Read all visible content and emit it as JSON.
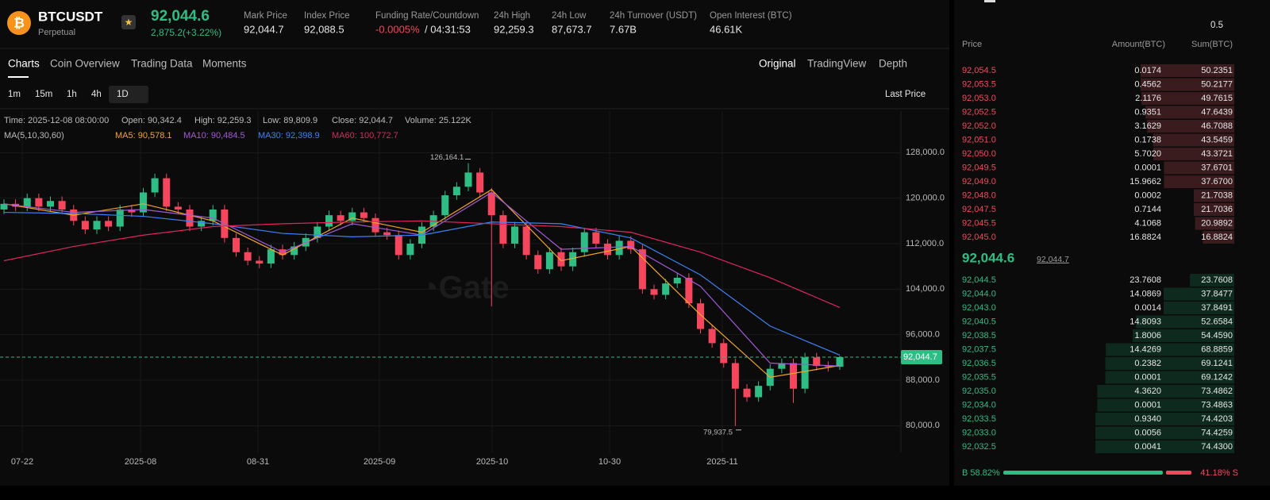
{
  "header": {
    "symbol": "BTCUSDT",
    "contract": "Perpetual",
    "price": "92,044.6",
    "change": "2,875.2(+3.22%)",
    "stats": [
      {
        "label": "Mark Price",
        "value": "92,044.7"
      },
      {
        "label": "Index Price",
        "value": "92,088.5"
      },
      {
        "label": "Funding Rate/Countdown",
        "value": "-0.0005%",
        "extra": "/ 04:31:53"
      },
      {
        "label": "24h High",
        "value": "92,259.3"
      },
      {
        "label": "24h Low",
        "value": "87,673.7"
      },
      {
        "label": "24h Turnover (USDT)",
        "value": "7.67B"
      },
      {
        "label": "Open Interest (BTC)",
        "value": "46.61K"
      }
    ]
  },
  "tabs": [
    "Charts",
    "Coin Overview",
    "Trading Data",
    "Moments"
  ],
  "views": [
    "Original",
    "TradingView",
    "Depth"
  ],
  "intervals": [
    "1m",
    "15m",
    "1h",
    "4h",
    "1D"
  ],
  "price_source": "Last Price",
  "chart_data": {
    "type": "candlestick",
    "info": [
      "Time: 2025-12-08 08:00:00",
      "Open: 90,342.4",
      "High: 92,259.3",
      "Low: 89,809.9",
      "Close: 92,044.7",
      "Volume: 25.122K"
    ],
    "ma_label": "MA(5,10,30,60)",
    "candles": [
      [
        118000,
        119800,
        117200,
        119000
      ],
      [
        119000,
        119800,
        117700,
        118500
      ],
      [
        118500,
        120800,
        117700,
        120000
      ],
      [
        120000,
        120800,
        117700,
        118500
      ],
      [
        118500,
        120300,
        117700,
        119500
      ],
      [
        119500,
        120300,
        117200,
        118000
      ],
      [
        118000,
        118800,
        115200,
        116000
      ],
      [
        116000,
        116800,
        113700,
        114500
      ],
      [
        114500,
        116800,
        113700,
        116000
      ],
      [
        116000,
        116800,
        114200,
        115000
      ],
      [
        115000,
        118800,
        114200,
        118000
      ],
      [
        118000,
        118800,
        116700,
        117500
      ],
      [
        117500,
        121800,
        116700,
        121000
      ],
      [
        121000,
        124300,
        120200,
        123500
      ],
      [
        123500,
        124300,
        117700,
        118500
      ],
      [
        118500,
        119300,
        117200,
        118000
      ],
      [
        118000,
        118800,
        114200,
        115000
      ],
      [
        115000,
        116800,
        114200,
        116000
      ],
      [
        116000,
        118800,
        115200,
        118000
      ],
      [
        118000,
        118800,
        112200,
        113000
      ],
      [
        113000,
        113800,
        109700,
        110500
      ],
      [
        110500,
        111300,
        108200,
        109000
      ],
      [
        109000,
        109800,
        107700,
        108500
      ],
      [
        108500,
        111800,
        107700,
        111000
      ],
      [
        111000,
        111800,
        109200,
        110000
      ],
      [
        110000,
        112300,
        109200,
        111500
      ],
      [
        111500,
        113800,
        110700,
        113000
      ],
      [
        113000,
        115800,
        112200,
        115000
      ],
      [
        115000,
        117800,
        114200,
        117000
      ],
      [
        117000,
        117800,
        115200,
        116000
      ],
      [
        116000,
        118300,
        115200,
        117500
      ],
      [
        117500,
        118300,
        115700,
        116500
      ],
      [
        116500,
        117300,
        113200,
        114000
      ],
      [
        114000,
        114800,
        112700,
        113500
      ],
      [
        113500,
        114300,
        109200,
        110000
      ],
      [
        110000,
        112800,
        109200,
        112000
      ],
      [
        112000,
        115800,
        111200,
        115000
      ],
      [
        115000,
        117800,
        114200,
        117000
      ],
      [
        117000,
        121300,
        116200,
        120500
      ],
      [
        120500,
        122800,
        119700,
        122000
      ],
      [
        122000,
        126164.1,
        121200,
        124500
      ],
      [
        124500,
        125300,
        120200,
        121000
      ],
      [
        121000,
        121800,
        101000,
        117000
      ],
      [
        117000,
        117800,
        111200,
        112000
      ],
      [
        112000,
        115800,
        111200,
        115000
      ],
      [
        115000,
        115800,
        109200,
        110000
      ],
      [
        110000,
        110800,
        106700,
        107500
      ],
      [
        107500,
        111300,
        106700,
        110500
      ],
      [
        110500,
        111300,
        107200,
        108000
      ],
      [
        108000,
        111300,
        107200,
        110500
      ],
      [
        110500,
        114800,
        109700,
        114000
      ],
      [
        114000,
        114800,
        111200,
        112000
      ],
      [
        112000,
        112800,
        109200,
        110000
      ],
      [
        110000,
        113300,
        109200,
        112500
      ],
      [
        112500,
        113300,
        110200,
        111000
      ],
      [
        111000,
        111800,
        103200,
        104000
      ],
      [
        104000,
        104800,
        102200,
        103000
      ],
      [
        103000,
        105800,
        102200,
        105000
      ],
      [
        105000,
        106800,
        104200,
        106000
      ],
      [
        106000,
        106800,
        100700,
        101500
      ],
      [
        101500,
        102300,
        96200,
        97000
      ],
      [
        97000,
        97800,
        93700,
        94500
      ],
      [
        94500,
        95300,
        90200,
        91000
      ],
      [
        91000,
        91800,
        79937.5,
        86500
      ],
      [
        86500,
        87300,
        84200,
        85000
      ],
      [
        85000,
        87800,
        84200,
        87000
      ],
      [
        87000,
        90800,
        86200,
        90000
      ],
      [
        90000,
        91800,
        89200,
        91000
      ],
      [
        91000,
        91800,
        84000,
        86500
      ],
      [
        86500,
        92800,
        85700,
        92000
      ],
      [
        92000,
        92800,
        89700,
        90500
      ],
      [
        90500,
        91300,
        89500,
        90342.4
      ],
      [
        90342.4,
        92259.3,
        89809.9,
        92044.7
      ]
    ],
    "up_color": "#2ebd85",
    "down_color": "#f6465d",
    "series": [
      {
        "name": "MA5: 90,578.1",
        "color": "#f5a623",
        "x": [
          0,
          6,
          12,
          18,
          24,
          30,
          36,
          42,
          48,
          54,
          60,
          66,
          72
        ],
        "values": [
          119000,
          117000,
          119000,
          116000,
          110000,
          116500,
          114000,
          121500,
          109000,
          111500,
          99500,
          88500,
          90578.1
        ]
      },
      {
        "name": "MA10: 90,484.5",
        "color": "#a259d9",
        "x": [
          0,
          6,
          12,
          18,
          24,
          30,
          36,
          42,
          48,
          54,
          60,
          66,
          72
        ],
        "values": [
          119000,
          117500,
          118000,
          116500,
          110500,
          115500,
          113500,
          121000,
          111000,
          111500,
          104500,
          91000,
          90484.5
        ]
      },
      {
        "name": "MA30: 92,398.9",
        "color": "#3b82f6",
        "x": [
          0,
          6,
          12,
          18,
          24,
          30,
          36,
          42,
          48,
          54,
          60,
          66,
          72
        ],
        "values": [
          117500,
          117300,
          116800,
          115500,
          113800,
          113200,
          113500,
          115800,
          115500,
          113000,
          106500,
          97500,
          92398.9
        ]
      },
      {
        "name": "MA60: 100,772.7",
        "color": "#e0245e",
        "x": [
          0,
          6,
          12,
          18,
          24,
          30,
          36,
          42,
          48,
          54,
          60,
          66,
          72
        ],
        "values": [
          109000,
          111500,
          113500,
          115000,
          115500,
          115800,
          116000,
          115500,
          115000,
          114000,
          110500,
          106000,
          100772.7
        ]
      }
    ],
    "ylim": [
      75300,
      135300
    ],
    "yticks": [
      {
        "value": 80000,
        "label": "80,000.0"
      },
      {
        "value": 88000,
        "label": "88,000.0"
      },
      {
        "value": 96000,
        "label": "96,000.0"
      },
      {
        "value": 104000,
        "label": "104,000.0"
      },
      {
        "value": 112000,
        "label": "112,000.0"
      },
      {
        "value": 120000,
        "label": "120,000.0"
      },
      {
        "value": 128000,
        "label": "128,000.0"
      }
    ],
    "xtick_labels": [
      "07-22",
      "2025-08",
      "08-31",
      "2025-09",
      "2025-10",
      "10-30",
      "2025-11"
    ],
    "last_price": {
      "value": 92044.7,
      "label": "92,044.7"
    },
    "annotations": [
      {
        "value": 126164.1,
        "label": "126,164.1"
      },
      {
        "value": 79937.5,
        "label": "79,937.5"
      }
    ]
  },
  "order_book": {
    "precision": "0.5",
    "columns": [
      "Price",
      "Amount(BTC)",
      "Sum(BTC)"
    ],
    "asks": [
      [
        "92,054.5",
        "0.0174",
        "50.2351"
      ],
      [
        "92,053.5",
        "0.4562",
        "50.2177"
      ],
      [
        "92,053.0",
        "2.1176",
        "49.7615"
      ],
      [
        "92,052.5",
        "0.9351",
        "47.6439"
      ],
      [
        "92,052.0",
        "3.1629",
        "46.7088"
      ],
      [
        "92,051.0",
        "0.1738",
        "43.5459"
      ],
      [
        "92,050.0",
        "5.7020",
        "43.3721"
      ],
      [
        "92,049.5",
        "0.0001",
        "37.6701"
      ],
      [
        "92,049.0",
        "15.9662",
        "37.6700"
      ],
      [
        "92,048.0",
        "0.0002",
        "21.7038"
      ],
      [
        "92,047.5",
        "0.7144",
        "21.7036"
      ],
      [
        "92,045.5",
        "4.1068",
        "20.9892"
      ],
      [
        "92,045.0",
        "16.8824",
        "16.8824"
      ]
    ],
    "mid_price": "92,044.6",
    "mark_price": "92,044.7",
    "bids": [
      [
        "92,044.5",
        "23.7608",
        "23.7608"
      ],
      [
        "92,044.0",
        "14.0869",
        "37.8477"
      ],
      [
        "92,043.0",
        "0.0014",
        "37.8491"
      ],
      [
        "92,040.5",
        "14.8093",
        "52.6584"
      ],
      [
        "92,038.5",
        "1.8006",
        "54.4590"
      ],
      [
        "92,037.5",
        "14.4269",
        "68.8859"
      ],
      [
        "92,036.5",
        "0.2382",
        "69.1241"
      ],
      [
        "92,035.5",
        "0.0001",
        "69.1242"
      ],
      [
        "92,035.0",
        "4.3620",
        "73.4862"
      ],
      [
        "92,034.0",
        "0.0001",
        "73.4863"
      ],
      [
        "92,033.5",
        "0.9340",
        "74.4203"
      ],
      [
        "92,033.0",
        "0.0056",
        "74.4259"
      ],
      [
        "92,032.5",
        "0.0041",
        "74.4300"
      ]
    ],
    "buy_ratio": {
      "value": 58.82,
      "label": "B 58.82%"
    },
    "sell_ratio": {
      "value": 41.18,
      "label": "41.18% S"
    }
  }
}
